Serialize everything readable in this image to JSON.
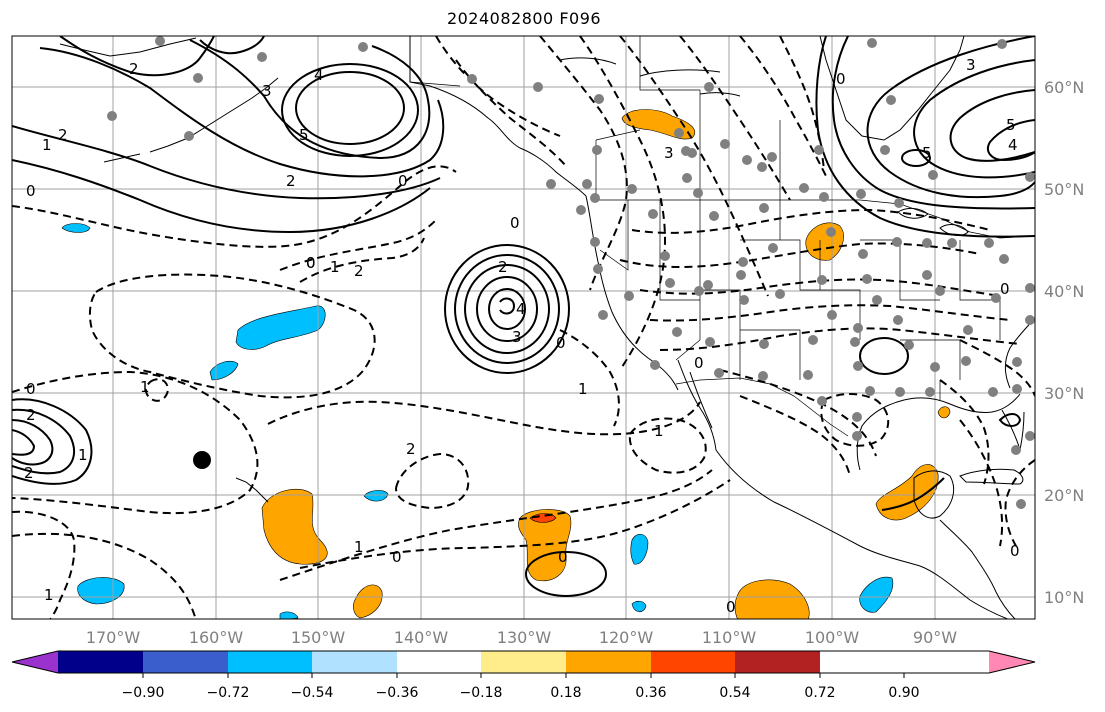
{
  "title": "2024082800 F096",
  "longitude_labels": [
    "170°W",
    "160°W",
    "150°W",
    "140°W",
    "130°W",
    "120°W",
    "110°W",
    "100°W",
    "90°W"
  ],
  "latitude_labels": [
    "60°N",
    "50°N",
    "40°N",
    "30°N",
    "20°N",
    "10°N"
  ],
  "colorbar": {
    "tick_labels": [
      "−0.90",
      "−0.72",
      "−0.54",
      "−0.36",
      "−0.18",
      "0.18",
      "0.36",
      "0.54",
      "0.72",
      "0.90"
    ],
    "colors": [
      "#9a32cd",
      "#00008b",
      "#3a5fcd",
      "#00bfff",
      "#b0e2ff",
      "#ffffff",
      "#ffec8b",
      "#ffa500",
      "#ff4500",
      "#b22222",
      "#ff89b4"
    ]
  },
  "contour_labels": {
    "alaska_2": "2",
    "alaska_3": "3",
    "alaska_4": "4",
    "alaska_5": "5",
    "pac_2": "2",
    "pac_1": "1",
    "pac_0": "0",
    "low_2": "2",
    "low_3": "3",
    "low_4": "4",
    "neg_0": "0",
    "neg_1": "1",
    "neg_2": "2",
    "east_3": "3",
    "east_4": "4",
    "east_5": "5",
    "east_0": "0",
    "sw_1": "1",
    "sw_2": "2",
    "sw_0": "0",
    "cen_1": "1",
    "cen_2": "2",
    "cen_0": "0",
    "west_0": "0",
    "west_2": "2",
    "west_1": "1",
    "can_3": "3",
    "mex_0": "0",
    "mex_1": "1",
    "hi_1": "1",
    "hi_2": "2",
    "e_0": "0"
  }
}
